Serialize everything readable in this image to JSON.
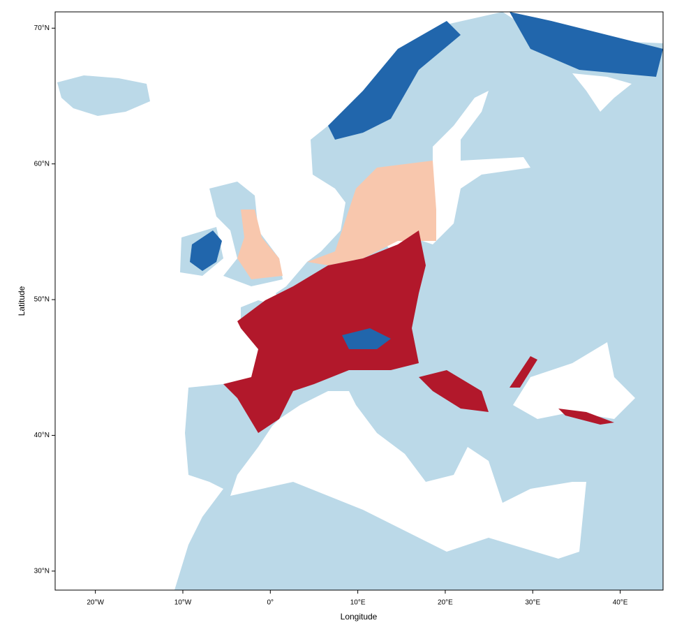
{
  "chart_data": {
    "type": "map",
    "xlabel": "Longitude",
    "ylabel": "Latitude",
    "xlim": [
      -24.6,
      44.9
    ],
    "ylim": [
      28.6,
      71.2
    ],
    "xticks": [
      {
        "value": -20,
        "label": "20°W"
      },
      {
        "value": -10,
        "label": "10°W"
      },
      {
        "value": 0,
        "label": "0°"
      },
      {
        "value": 10,
        "label": "10°E"
      },
      {
        "value": 20,
        "label": "20°E"
      },
      {
        "value": 30,
        "label": "30°E"
      },
      {
        "value": 40,
        "label": "40°E"
      }
    ],
    "yticks": [
      {
        "value": 30,
        "label": "30°N"
      },
      {
        "value": 40,
        "label": "40°N"
      },
      {
        "value": 50,
        "label": "50°N"
      },
      {
        "value": 60,
        "label": "60°N"
      },
      {
        "value": 70,
        "label": "70°N"
      }
    ]
  }
}
